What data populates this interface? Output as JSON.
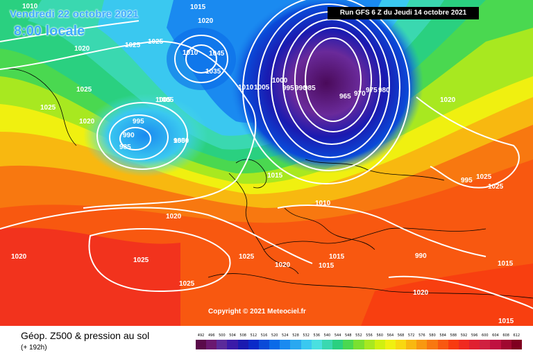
{
  "header": {
    "date_label": "Vendredi 22 octobre 2021",
    "time_label": "8:00 locale",
    "run_label": "Run GFS 6 Z du Jeudi 14 octobre 2021"
  },
  "map": {
    "copyright": "Copyright © 2021 Meteociel.fr",
    "pressure_labels": [
      {
        "text": "1010"
      },
      {
        "text": "1015"
      },
      {
        "text": "1020"
      },
      {
        "text": "1025"
      },
      {
        "text": "1025"
      },
      {
        "text": "1020"
      },
      {
        "text": "1015"
      },
      {
        "text": "1010"
      },
      {
        "text": "1045"
      },
      {
        "text": "1035"
      },
      {
        "text": "1025"
      },
      {
        "text": "1025"
      },
      {
        "text": "1020"
      },
      {
        "text": "1005"
      },
      {
        "text": "1010"
      },
      {
        "text": "1005"
      },
      {
        "text": "1000"
      },
      {
        "text": "995"
      },
      {
        "text": "990"
      },
      {
        "text": "985"
      },
      {
        "text": "965"
      },
      {
        "text": "970"
      },
      {
        "text": "975"
      },
      {
        "text": "980"
      },
      {
        "text": "995"
      },
      {
        "text": "990"
      },
      {
        "text": "985"
      },
      {
        "text": "1020"
      },
      {
        "text": "1025"
      },
      {
        "text": "1025"
      },
      {
        "text": "995"
      },
      {
        "text": "990"
      },
      {
        "text": "985"
      },
      {
        "text": "1000"
      },
      {
        "text": "1015"
      },
      {
        "text": "1010"
      },
      {
        "text": "1020"
      },
      {
        "text": "1020"
      },
      {
        "text": "1025"
      },
      {
        "text": "1025"
      },
      {
        "text": "1025"
      },
      {
        "text": "1020"
      },
      {
        "text": "1015"
      },
      {
        "text": "1015"
      },
      {
        "text": "1020"
      },
      {
        "text": "1015"
      },
      {
        "text": "1015"
      },
      {
        "text": "1005"
      }
    ]
  },
  "footer": {
    "title": "Géop. Z500 & pression au sol",
    "subtitle": "(+ 192h)",
    "scale_ticks": [
      "492",
      "496",
      "500",
      "504",
      "508",
      "512",
      "516",
      "520",
      "524",
      "528",
      "532",
      "536",
      "540",
      "544",
      "548",
      "552",
      "556",
      "560",
      "564",
      "568",
      "572",
      "576",
      "580",
      "584",
      "588",
      "592",
      "596",
      "600",
      "604",
      "608",
      "612"
    ],
    "scale_colors": [
      "#5a0a4a",
      "#6a1870",
      "#5a2a9a",
      "#3a1aa8",
      "#1a1ab0",
      "#0a2ac8",
      "#0a4ad8",
      "#0a6ae8",
      "#1a8af0",
      "#2aa8f0",
      "#3ac8f0",
      "#4ae0e0",
      "#3ad8b0",
      "#2ad080",
      "#4ad850",
      "#7ae030",
      "#a8e820",
      "#d0f010",
      "#f0f010",
      "#f8d810",
      "#f8b810",
      "#f89810",
      "#f87810",
      "#f85810",
      "#f83a10",
      "#f02a20",
      "#e02030",
      "#d02040",
      "#c01040",
      "#a00830",
      "#800020"
    ]
  }
}
